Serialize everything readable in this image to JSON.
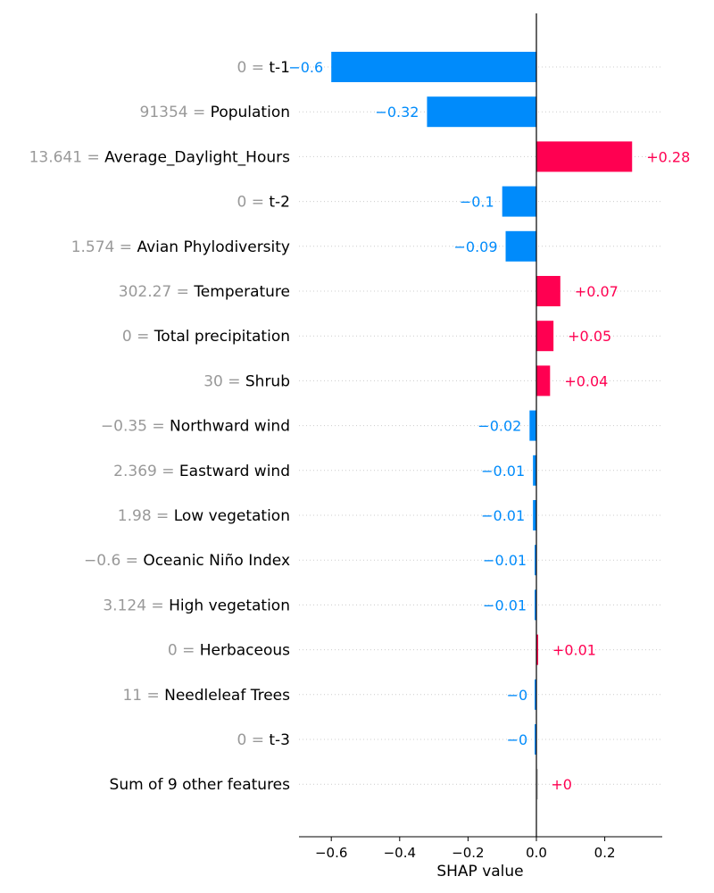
{
  "chart_data": {
    "type": "bar",
    "orientation": "horizontal",
    "xlabel": "SHAP value",
    "xlim": [
      -0.69,
      0.36
    ],
    "xticks": [
      {
        "value": -0.6,
        "label": "−0.6"
      },
      {
        "value": -0.4,
        "label": "−0.4"
      },
      {
        "value": -0.2,
        "label": "−0.2"
      },
      {
        "value": 0.0,
        "label": "0.0"
      },
      {
        "value": 0.2,
        "label": "0.2"
      }
    ],
    "colors": {
      "negative": "#008bfb",
      "positive": "#ff0051",
      "other": "#cccccc",
      "value_text": "#999999"
    },
    "rows": [
      {
        "feature_value": "0 = ",
        "feature": "t-1",
        "shap": -0.6,
        "label": "−0.6"
      },
      {
        "feature_value": "91354 = ",
        "feature": "Population",
        "shap": -0.32,
        "label": "−0.32"
      },
      {
        "feature_value": "13.641 = ",
        "feature": "Average_Daylight_Hours",
        "shap": 0.28,
        "label": "+0.28"
      },
      {
        "feature_value": "0 = ",
        "feature": "t-2",
        "shap": -0.1,
        "label": "−0.1"
      },
      {
        "feature_value": "1.574 = ",
        "feature": "Avian Phylodiversity",
        "shap": -0.09,
        "label": "−0.09"
      },
      {
        "feature_value": "302.27 = ",
        "feature": "Temperature",
        "shap": 0.07,
        "label": "+0.07"
      },
      {
        "feature_value": "0 = ",
        "feature": "Total precipitation",
        "shap": 0.05,
        "label": "+0.05"
      },
      {
        "feature_value": "30 = ",
        "feature": "Shrub",
        "shap": 0.04,
        "label": "+0.04"
      },
      {
        "feature_value": "−0.35 = ",
        "feature": "Northward wind",
        "shap": -0.02,
        "label": "−0.02"
      },
      {
        "feature_value": "2.369 = ",
        "feature": "Eastward wind",
        "shap": -0.01,
        "label": "−0.01"
      },
      {
        "feature_value": "1.98 = ",
        "feature": "Low vegetation",
        "shap": -0.01,
        "label": "−0.01"
      },
      {
        "feature_value": "−0.6 = ",
        "feature": "Oceanic Niño Index",
        "shap": -0.005,
        "label": "−0.01"
      },
      {
        "feature_value": "3.124 = ",
        "feature": "High vegetation",
        "shap": -0.005,
        "label": "−0.01"
      },
      {
        "feature_value": "0 = ",
        "feature": "Herbaceous",
        "shap": 0.005,
        "label": "+0.01"
      },
      {
        "feature_value": "11 = ",
        "feature": "Needleleaf Trees",
        "shap": -0.002,
        "label": "−0"
      },
      {
        "feature_value": "0 = ",
        "feature": "t-3",
        "shap": -0.002,
        "label": "−0"
      },
      {
        "feature_value": "",
        "feature": "Sum of 9 other features",
        "shap": 0.001,
        "label": "+0",
        "is_other": true
      }
    ]
  }
}
